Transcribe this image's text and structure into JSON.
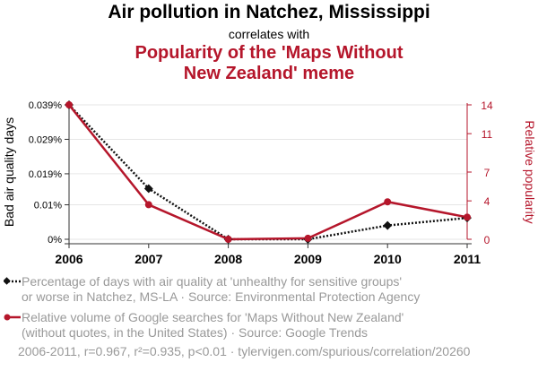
{
  "header": {
    "title": "Air pollution in Natchez, Mississippi",
    "subtitle": "correlates with",
    "title2_line1": "Popularity of the 'Maps Without",
    "title2_line2": "New Zealand' meme"
  },
  "colors": {
    "series1": "#111111",
    "series2": "#b5162b",
    "muted": "#999999"
  },
  "chart_data": {
    "type": "line",
    "x": [
      2006,
      2007,
      2008,
      2009,
      2010,
      2011
    ],
    "x_tick_labels": [
      "2006",
      "2007",
      "2008",
      "2009",
      "2010",
      "2011"
    ],
    "y_left": {
      "label": "Bad air quality days",
      "ticks": [
        0,
        0.01,
        0.019,
        0.029,
        0.039
      ],
      "tick_labels": [
        "0%",
        "0.01%",
        "0.019%",
        "0.029%",
        "0.039%"
      ],
      "range": [
        0,
        0.039
      ]
    },
    "y_right": {
      "label": "Relative popularity",
      "ticks": [
        0,
        4,
        7,
        11,
        14
      ],
      "tick_labels": [
        "0",
        "4",
        "7",
        "11",
        "14"
      ],
      "range": [
        0,
        14
      ]
    },
    "series": [
      {
        "name": "Percentage of days with air quality at 'unhealthy for sensitive groups' or worse in Natchez, MS-LA",
        "axis": "left",
        "style": "dotted",
        "marker": "diamond",
        "values": [
          0.039,
          0.0147,
          0,
          0,
          0.004,
          0.0062
        ]
      },
      {
        "name": "Relative volume of Google searches for 'Maps Without New Zealand'",
        "axis": "right",
        "style": "solid",
        "marker": "circle",
        "values": [
          14,
          3.6,
          0,
          0.1,
          3.9,
          2.3
        ]
      }
    ],
    "grid": true
  },
  "legend": {
    "item1_line1": "Percentage of days with air quality at 'unhealthy for sensitive groups'",
    "item1_line2": "or worse in Natchez, MS-LA · Source: Environmental Protection Agency",
    "item2_line1": "Relative volume of Google searches for 'Maps Without New Zealand'",
    "item2_line2": "(without quotes, in the United States) · Source: Google Trends"
  },
  "footer": "2006-2011, r=0.967, r²=0.935, p<0.01 · tylervigen.com/spurious/correlation/20260"
}
